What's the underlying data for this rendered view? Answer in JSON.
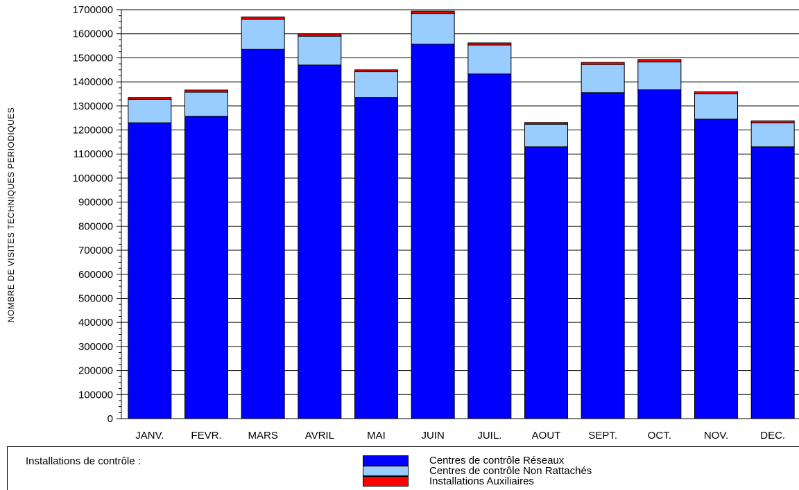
{
  "chart_data": {
    "type": "bar",
    "stacked": true,
    "title": "",
    "xlabel": "",
    "ylabel": "NOMBRE DE VISITES TECHNIQUES PERIODIQUES",
    "ylim": [
      0,
      1700000
    ],
    "ytick_step": 100000,
    "grid": true,
    "categories": [
      "JANV.",
      "FEVR.",
      "MARS",
      "AVRIL",
      "MAI",
      "JUIN",
      "JUIL.",
      "AOUT",
      "SEPT.",
      "OCT.",
      "NOV.",
      "DEC."
    ],
    "series": [
      {
        "name": "Centres de contrôle Réseaux",
        "color": "#0000ff",
        "values": [
          1230000,
          1257000,
          1535000,
          1470000,
          1335000,
          1557000,
          1433000,
          1130000,
          1355000,
          1367000,
          1245000,
          1130000
        ]
      },
      {
        "name": "Centres de contrôle Non Rattachés",
        "color": "#99ccff",
        "values": [
          97000,
          100000,
          125000,
          120000,
          107000,
          127000,
          120000,
          94000,
          117000,
          116000,
          105000,
          100000
        ]
      },
      {
        "name": "Installations Auxiliaires",
        "color": "#ff0000",
        "values": [
          8000,
          9000,
          10000,
          10000,
          8000,
          10000,
          9000,
          7000,
          9000,
          10000,
          9000,
          8000
        ]
      }
    ],
    "legend": {
      "title": "Installations de contrôle :",
      "position": "bottom"
    }
  }
}
